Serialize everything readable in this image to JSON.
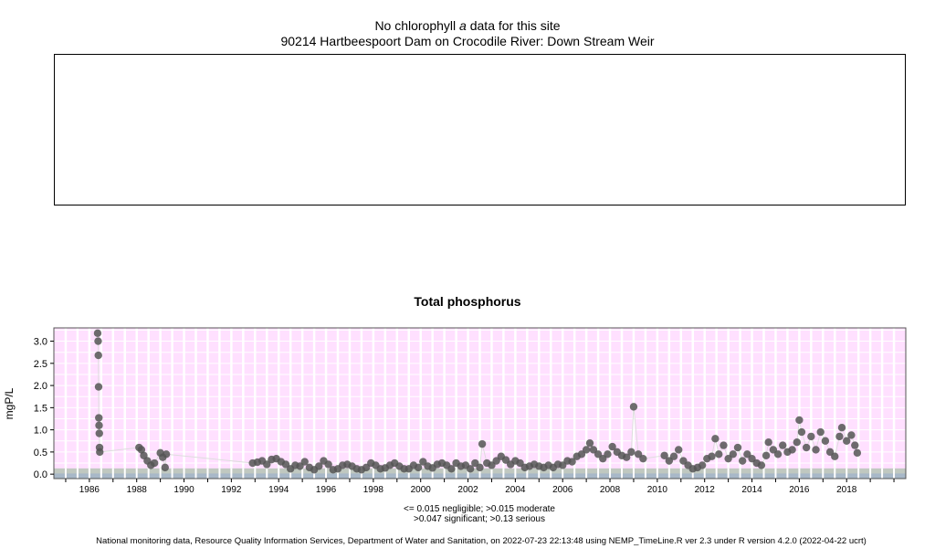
{
  "header": {
    "no_data_prefix": "No chlorophyll",
    "no_data_italic": "a",
    "no_data_suffix": "data for this site",
    "site": "90214 Hartbeespoort Dam on Crocodile River: Down Stream Weir"
  },
  "footer": {
    "note_line1": "<= 0.015 negligible; >0.015 moderate",
    "note_line2": ">0.047 significant; >0.13 serious",
    "credit": "National monitoring data, Resource Quality Information Services, Department of Water and Sanitation, on 2022-07-23 22:13:48 using NEMP_TimeLine.R ver 2.3 under R version 4.2.0 (2022-04-22 ucrt)"
  },
  "colors": {
    "panel_bg": "#ffe0ff",
    "grid": "#ffffff",
    "point": "#555555",
    "line": "#dddddd",
    "band_gray": "#c0c8c0",
    "band_blue": "#a8b8c8"
  },
  "chart_data": {
    "type": "scatter",
    "title": "Total phosphorus",
    "xlabel": "",
    "ylabel": "mgP/L",
    "xlim": [
      1984.5,
      2020.5
    ],
    "ylim": [
      -0.1,
      3.3
    ],
    "x_ticks": [
      1986,
      1988,
      1990,
      1992,
      1994,
      1996,
      1998,
      2000,
      2002,
      2004,
      2006,
      2008,
      2010,
      2012,
      2014,
      2016,
      2018
    ],
    "y_ticks": [
      0.0,
      0.5,
      1.0,
      1.5,
      2.0,
      2.5,
      3.0
    ],
    "y_tick_labels": [
      "0.0",
      "0.5",
      "1.0",
      "1.5",
      "2.0",
      "2.5",
      "3.0"
    ],
    "grid": true,
    "series": [
      {
        "points": [
          [
            1986.35,
            3.18
          ],
          [
            1986.37,
            3.0
          ],
          [
            1986.38,
            2.68
          ],
          [
            1986.39,
            1.97
          ],
          [
            1986.4,
            1.27
          ],
          [
            1986.41,
            1.1
          ],
          [
            1986.42,
            0.92
          ],
          [
            1986.43,
            0.6
          ],
          [
            1986.44,
            0.5
          ],
          [
            1988.1,
            0.6
          ],
          [
            1988.2,
            0.55
          ],
          [
            1988.3,
            0.42
          ],
          [
            1988.45,
            0.3
          ],
          [
            1988.6,
            0.2
          ],
          [
            1988.75,
            0.25
          ],
          [
            1989.0,
            0.48
          ],
          [
            1989.1,
            0.38
          ],
          [
            1989.2,
            0.15
          ],
          [
            1989.25,
            0.45
          ],
          [
            1992.9,
            0.25
          ],
          [
            1993.1,
            0.27
          ],
          [
            1993.3,
            0.3
          ],
          [
            1993.5,
            0.22
          ],
          [
            1993.7,
            0.33
          ],
          [
            1993.9,
            0.35
          ],
          [
            1994.1,
            0.28
          ],
          [
            1994.3,
            0.22
          ],
          [
            1994.5,
            0.12
          ],
          [
            1994.7,
            0.2
          ],
          [
            1994.9,
            0.18
          ],
          [
            1995.1,
            0.28
          ],
          [
            1995.3,
            0.15
          ],
          [
            1995.5,
            0.1
          ],
          [
            1995.7,
            0.18
          ],
          [
            1995.9,
            0.3
          ],
          [
            1996.1,
            0.22
          ],
          [
            1996.3,
            0.1
          ],
          [
            1996.5,
            0.12
          ],
          [
            1996.7,
            0.2
          ],
          [
            1996.9,
            0.22
          ],
          [
            1997.1,
            0.18
          ],
          [
            1997.3,
            0.12
          ],
          [
            1997.5,
            0.1
          ],
          [
            1997.7,
            0.15
          ],
          [
            1997.9,
            0.25
          ],
          [
            1998.1,
            0.2
          ],
          [
            1998.3,
            0.12
          ],
          [
            1998.5,
            0.14
          ],
          [
            1998.7,
            0.2
          ],
          [
            1998.9,
            0.25
          ],
          [
            1999.1,
            0.18
          ],
          [
            1999.3,
            0.12
          ],
          [
            1999.5,
            0.12
          ],
          [
            1999.7,
            0.2
          ],
          [
            1999.9,
            0.15
          ],
          [
            2000.1,
            0.28
          ],
          [
            2000.3,
            0.18
          ],
          [
            2000.5,
            0.14
          ],
          [
            2000.7,
            0.22
          ],
          [
            2000.9,
            0.25
          ],
          [
            2001.1,
            0.2
          ],
          [
            2001.3,
            0.12
          ],
          [
            2001.5,
            0.25
          ],
          [
            2001.7,
            0.18
          ],
          [
            2001.9,
            0.2
          ],
          [
            2002.1,
            0.12
          ],
          [
            2002.3,
            0.25
          ],
          [
            2002.5,
            0.15
          ],
          [
            2002.6,
            0.68
          ],
          [
            2002.8,
            0.25
          ],
          [
            2003.0,
            0.2
          ],
          [
            2003.2,
            0.3
          ],
          [
            2003.4,
            0.4
          ],
          [
            2003.6,
            0.32
          ],
          [
            2003.8,
            0.22
          ],
          [
            2004.0,
            0.3
          ],
          [
            2004.2,
            0.25
          ],
          [
            2004.4,
            0.15
          ],
          [
            2004.6,
            0.18
          ],
          [
            2004.8,
            0.22
          ],
          [
            2005.0,
            0.18
          ],
          [
            2005.2,
            0.15
          ],
          [
            2005.4,
            0.2
          ],
          [
            2005.6,
            0.15
          ],
          [
            2005.8,
            0.22
          ],
          [
            2006.0,
            0.2
          ],
          [
            2006.2,
            0.3
          ],
          [
            2006.4,
            0.28
          ],
          [
            2006.6,
            0.4
          ],
          [
            2006.8,
            0.45
          ],
          [
            2007.0,
            0.55
          ],
          [
            2007.15,
            0.7
          ],
          [
            2007.3,
            0.55
          ],
          [
            2007.5,
            0.45
          ],
          [
            2007.7,
            0.35
          ],
          [
            2007.9,
            0.45
          ],
          [
            2008.1,
            0.62
          ],
          [
            2008.3,
            0.5
          ],
          [
            2008.5,
            0.42
          ],
          [
            2008.7,
            0.38
          ],
          [
            2008.9,
            0.5
          ],
          [
            2009.0,
            1.52
          ],
          [
            2009.2,
            0.45
          ],
          [
            2009.4,
            0.35
          ],
          [
            2010.3,
            0.42
          ],
          [
            2010.5,
            0.3
          ],
          [
            2010.7,
            0.4
          ],
          [
            2010.9,
            0.55
          ],
          [
            2011.1,
            0.3
          ],
          [
            2011.3,
            0.2
          ],
          [
            2011.5,
            0.12
          ],
          [
            2011.7,
            0.15
          ],
          [
            2011.9,
            0.2
          ],
          [
            2012.1,
            0.35
          ],
          [
            2012.3,
            0.4
          ],
          [
            2012.45,
            0.8
          ],
          [
            2012.6,
            0.45
          ],
          [
            2012.8,
            0.65
          ],
          [
            2013.0,
            0.35
          ],
          [
            2013.2,
            0.45
          ],
          [
            2013.4,
            0.6
          ],
          [
            2013.6,
            0.3
          ],
          [
            2013.8,
            0.45
          ],
          [
            2014.0,
            0.35
          ],
          [
            2014.2,
            0.25
          ],
          [
            2014.4,
            0.2
          ],
          [
            2014.6,
            0.42
          ],
          [
            2014.7,
            0.72
          ],
          [
            2014.9,
            0.55
          ],
          [
            2015.1,
            0.45
          ],
          [
            2015.3,
            0.65
          ],
          [
            2015.5,
            0.5
          ],
          [
            2015.7,
            0.55
          ],
          [
            2015.9,
            0.72
          ],
          [
            2016.0,
            1.22
          ],
          [
            2016.1,
            0.95
          ],
          [
            2016.3,
            0.6
          ],
          [
            2016.5,
            0.85
          ],
          [
            2016.7,
            0.55
          ],
          [
            2016.9,
            0.95
          ],
          [
            2017.1,
            0.75
          ],
          [
            2017.3,
            0.5
          ],
          [
            2017.5,
            0.4
          ],
          [
            2017.7,
            0.85
          ],
          [
            2017.8,
            1.05
          ],
          [
            2018.0,
            0.75
          ],
          [
            2018.2,
            0.88
          ],
          [
            2018.35,
            0.65
          ],
          [
            2018.45,
            0.48
          ]
        ]
      }
    ]
  }
}
